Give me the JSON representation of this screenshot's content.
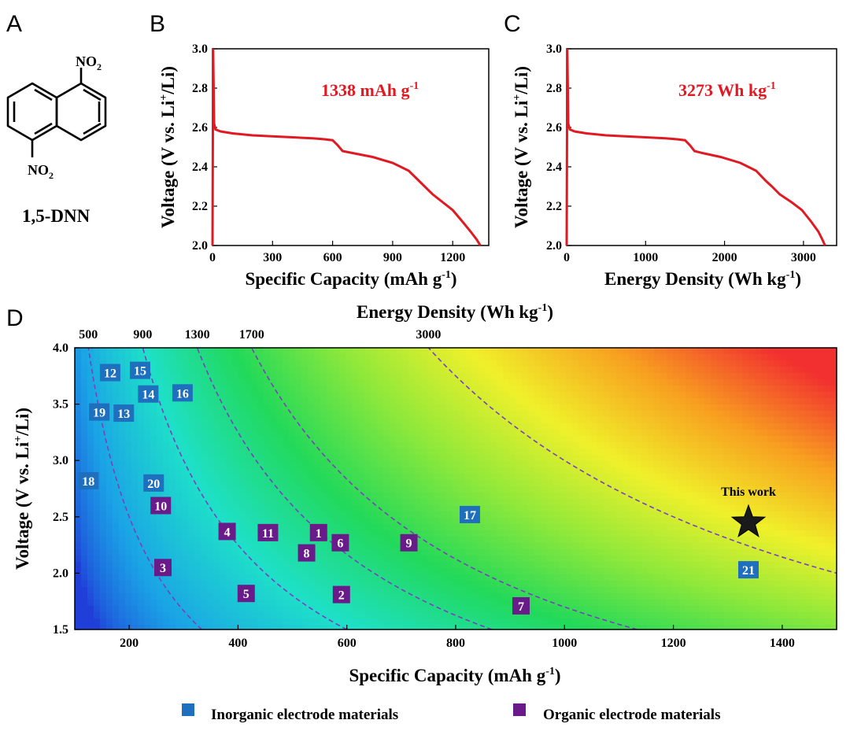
{
  "panels": {
    "a": {
      "letter": "A",
      "group_top": "NO",
      "group_bottom": "NO",
      "group_sub": "2",
      "compound": "1,5-DNN"
    },
    "b": {
      "letter": "B"
    },
    "c": {
      "letter": "C"
    },
    "d": {
      "letter": "D"
    }
  },
  "colors": {
    "curve": "#e01a22",
    "inorganic": "#1f6fbf",
    "organic": "#6a1b8a",
    "contour": "#7a3fc0"
  },
  "chart_data": [
    {
      "id": "B",
      "type": "line",
      "xlabel": "Specific Capacity (mAh g",
      "xlabel_sup": "-1",
      "xlabel_end": ")",
      "ylabel_pre": "Voltage (V vs. Li",
      "ylabel_sup": "+",
      "ylabel_post": "/Li)",
      "xlim": [
        0,
        1380
      ],
      "ylim": [
        2.0,
        3.0
      ],
      "xticks": [
        0,
        300,
        600,
        900,
        1200
      ],
      "yticks": [
        2.0,
        2.2,
        2.4,
        2.6,
        2.8,
        3.0
      ],
      "annotation": "1338 mAh g",
      "annotation_sup": "-1",
      "series": [
        {
          "x": [
            0,
            3,
            8,
            15,
            40,
            100,
            200,
            300,
            400,
            500,
            560,
            600,
            625,
            650,
            700,
            800,
            900,
            980,
            1030,
            1060,
            1100,
            1150,
            1200,
            1250,
            1290,
            1320,
            1338
          ],
          "y": [
            2.0,
            3.0,
            2.62,
            2.59,
            2.58,
            2.57,
            2.56,
            2.555,
            2.55,
            2.545,
            2.54,
            2.535,
            2.51,
            2.48,
            2.47,
            2.45,
            2.42,
            2.38,
            2.33,
            2.3,
            2.26,
            2.22,
            2.18,
            2.12,
            2.07,
            2.03,
            2.0
          ]
        }
      ]
    },
    {
      "id": "C",
      "type": "line",
      "xlabel": "Energy Density (Wh kg",
      "xlabel_sup": "-1",
      "xlabel_end": ")",
      "ylabel_pre": "Voltage (V vs. Li",
      "ylabel_sup": "+",
      "ylabel_post": "/Li)",
      "xlim": [
        0,
        3420
      ],
      "ylim": [
        2.0,
        3.0
      ],
      "xticks": [
        0,
        1000,
        2000,
        3000
      ],
      "yticks": [
        2.0,
        2.2,
        2.4,
        2.6,
        2.8,
        3.0
      ],
      "annotation": "3273 Wh kg",
      "annotation_sup": "-1",
      "series": [
        {
          "x": [
            0,
            8,
            20,
            40,
            100,
            250,
            500,
            750,
            1000,
            1250,
            1400,
            1500,
            1560,
            1620,
            1720,
            1950,
            2200,
            2400,
            2520,
            2600,
            2700,
            2850,
            2980,
            3100,
            3190,
            3240,
            3273
          ],
          "y": [
            2.0,
            3.0,
            2.62,
            2.59,
            2.58,
            2.57,
            2.56,
            2.555,
            2.55,
            2.545,
            2.54,
            2.535,
            2.51,
            2.48,
            2.47,
            2.45,
            2.42,
            2.38,
            2.33,
            2.3,
            2.26,
            2.22,
            2.18,
            2.12,
            2.07,
            2.03,
            2.0
          ]
        }
      ]
    },
    {
      "id": "D",
      "type": "heatmap",
      "xlabel": "Specific Capacity (mAh g",
      "xlabel_sup": "-1",
      "xlabel_end": ")",
      "ylabel_pre": "Voltage (V vs. Li",
      "ylabel_sup": "+",
      "ylabel_post": "/Li)",
      "top_label": "Energy Density (Wh kg",
      "top_label_sup": "-1",
      "top_label_end": ")",
      "xlim": [
        100,
        1500
      ],
      "ylim": [
        1.5,
        4.0
      ],
      "xticks": [
        200,
        400,
        600,
        800,
        1000,
        1200,
        1400
      ],
      "yticks": [
        1.5,
        2.0,
        2.5,
        3.0,
        3.5,
        4.0
      ],
      "top_ticks": [
        500,
        900,
        1300,
        1700,
        3000
      ],
      "contours": [
        500,
        900,
        1300,
        1700,
        3000
      ],
      "color_scale": [
        "#1f3fd8",
        "#1aa3e6",
        "#1ee0c8",
        "#22d95a",
        "#8fe83a",
        "#f0f02a",
        "#f8a020",
        "#f23030"
      ],
      "star_label": "This work",
      "star": {
        "x": 1338,
        "y": 2.45
      },
      "points": [
        {
          "label": "12",
          "x": 165,
          "y": 3.78,
          "class": "inorganic"
        },
        {
          "label": "15",
          "x": 220,
          "y": 3.8,
          "class": "inorganic"
        },
        {
          "label": "14",
          "x": 235,
          "y": 3.59,
          "class": "inorganic"
        },
        {
          "label": "16",
          "x": 298,
          "y": 3.6,
          "class": "inorganic"
        },
        {
          "label": "19",
          "x": 145,
          "y": 3.43,
          "class": "inorganic"
        },
        {
          "label": "13",
          "x": 190,
          "y": 3.42,
          "class": "inorganic"
        },
        {
          "label": "18",
          "x": 125,
          "y": 2.82,
          "class": "inorganic"
        },
        {
          "label": "20",
          "x": 245,
          "y": 2.8,
          "class": "inorganic"
        },
        {
          "label": "17",
          "x": 826,
          "y": 2.52,
          "class": "inorganic"
        },
        {
          "label": "21",
          "x": 1338,
          "y": 2.03,
          "class": "inorganic"
        },
        {
          "label": "10",
          "x": 258,
          "y": 2.6,
          "class": "organic"
        },
        {
          "label": "4",
          "x": 380,
          "y": 2.37,
          "class": "organic"
        },
        {
          "label": "11",
          "x": 455,
          "y": 2.36,
          "class": "organic"
        },
        {
          "label": "1",
          "x": 548,
          "y": 2.36,
          "class": "organic"
        },
        {
          "label": "6",
          "x": 588,
          "y": 2.27,
          "class": "organic"
        },
        {
          "label": "9",
          "x": 714,
          "y": 2.27,
          "class": "organic"
        },
        {
          "label": "8",
          "x": 526,
          "y": 2.18,
          "class": "organic"
        },
        {
          "label": "3",
          "x": 262,
          "y": 2.05,
          "class": "organic"
        },
        {
          "label": "5",
          "x": 415,
          "y": 1.82,
          "class": "organic"
        },
        {
          "label": "2",
          "x": 590,
          "y": 1.81,
          "class": "organic"
        },
        {
          "label": "7",
          "x": 920,
          "y": 1.71,
          "class": "organic"
        }
      ]
    }
  ],
  "legend": {
    "inorganic": "Inorganic electrode materials",
    "organic": "Organic electrode materials"
  }
}
